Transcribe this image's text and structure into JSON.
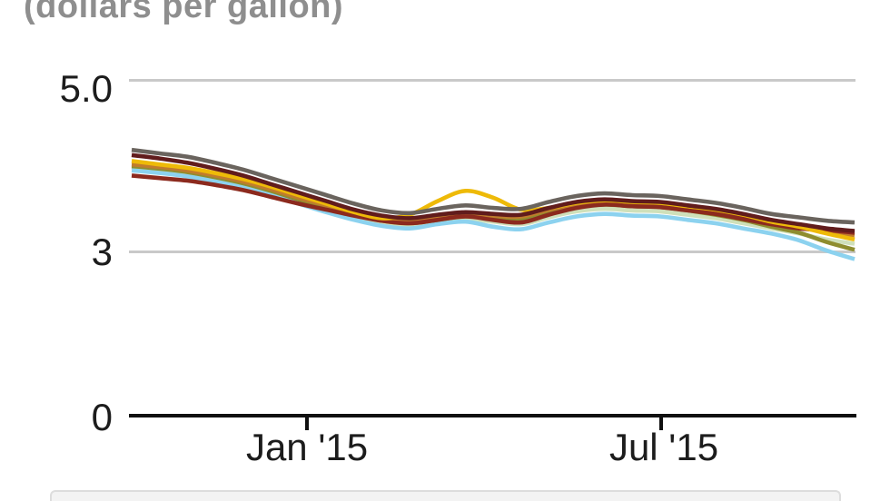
{
  "chart_data": {
    "type": "line",
    "title": "(dollars per gallon)",
    "ylabel": "dollars per gallon",
    "grid": "horizontal",
    "legend_position": "bottom (cut off, not visible)",
    "y_axis": {
      "ticks": [
        {
          "label": "5.0",
          "value": 5.0
        },
        {
          "label": "3",
          "value": 3.0
        },
        {
          "label": "0",
          "value": 0.0
        }
      ]
    },
    "x_axis": {
      "range": "Oct 2014 to Oct 2015, biweekly points",
      "ticks": [
        {
          "label": "Jan '15",
          "t": 6.3
        },
        {
          "label": "Jul '15",
          "t": 19.1
        }
      ]
    },
    "ylim_drawn": [
      0,
      5.0
    ],
    "series": [
      {
        "name": "pale-green",
        "color": "#cfe0ba",
        "values": [
          3.99,
          3.96,
          3.92,
          3.86,
          3.79,
          3.7,
          3.6,
          3.51,
          3.42,
          3.35,
          3.32,
          3.36,
          3.39,
          3.36,
          3.33,
          3.41,
          3.48,
          3.51,
          3.49,
          3.48,
          3.44,
          3.4,
          3.34,
          3.28,
          3.22,
          3.15,
          3.1
        ]
      },
      {
        "name": "sky-blue",
        "color": "#8cd2ef",
        "values": [
          3.96,
          3.93,
          3.89,
          3.83,
          3.76,
          3.67,
          3.57,
          3.47,
          3.38,
          3.31,
          3.28,
          3.33,
          3.36,
          3.3,
          3.27,
          3.35,
          3.42,
          3.45,
          3.43,
          3.42,
          3.38,
          3.34,
          3.28,
          3.22,
          3.14,
          3.02,
          2.92
        ]
      },
      {
        "name": "olive",
        "color": "#8e8d2f",
        "values": [
          4.01,
          3.98,
          3.94,
          3.88,
          3.81,
          3.72,
          3.62,
          3.53,
          3.44,
          3.37,
          3.34,
          3.38,
          3.42,
          3.4,
          3.39,
          3.46,
          3.53,
          3.56,
          3.54,
          3.53,
          3.49,
          3.44,
          3.38,
          3.3,
          3.23,
          3.12,
          3.03
        ]
      },
      {
        "name": "orange",
        "color": "#c07c2c",
        "values": [
          4.03,
          4.0,
          3.96,
          3.9,
          3.83,
          3.74,
          3.64,
          3.55,
          3.46,
          3.39,
          3.36,
          3.41,
          3.45,
          3.43,
          3.42,
          3.5,
          3.56,
          3.59,
          3.57,
          3.56,
          3.52,
          3.48,
          3.42,
          3.35,
          3.29,
          3.24,
          3.2
        ]
      },
      {
        "name": "brick-red",
        "color": "#8c2a1e",
        "values": [
          3.9,
          3.87,
          3.84,
          3.79,
          3.73,
          3.65,
          3.57,
          3.5,
          3.43,
          3.37,
          3.34,
          3.38,
          3.42,
          3.38,
          3.35,
          3.44,
          3.52,
          3.56,
          3.54,
          3.53,
          3.49,
          3.45,
          3.39,
          3.33,
          3.28,
          3.26,
          3.23
        ]
      },
      {
        "name": "yellow",
        "color": "#eeba08",
        "values": [
          4.07,
          4.03,
          3.99,
          3.93,
          3.86,
          3.77,
          3.67,
          3.57,
          3.47,
          3.4,
          3.44,
          3.6,
          3.72,
          3.64,
          3.5,
          3.52,
          3.58,
          3.61,
          3.59,
          3.58,
          3.54,
          3.5,
          3.44,
          3.36,
          3.3,
          3.22,
          3.15
        ]
      },
      {
        "name": "dark-maroon",
        "color": "#611c1c",
        "values": [
          4.14,
          4.1,
          4.05,
          3.98,
          3.9,
          3.8,
          3.7,
          3.6,
          3.5,
          3.43,
          3.4,
          3.44,
          3.47,
          3.45,
          3.44,
          3.52,
          3.59,
          3.62,
          3.6,
          3.59,
          3.55,
          3.51,
          3.45,
          3.38,
          3.33,
          3.28,
          3.25
        ]
      },
      {
        "name": "gray",
        "color": "#6a645e",
        "values": [
          4.2,
          4.16,
          4.12,
          4.05,
          3.97,
          3.87,
          3.77,
          3.67,
          3.57,
          3.49,
          3.46,
          3.51,
          3.55,
          3.52,
          3.51,
          3.59,
          3.66,
          3.69,
          3.67,
          3.66,
          3.62,
          3.58,
          3.52,
          3.45,
          3.41,
          3.37,
          3.35
        ]
      }
    ]
  }
}
